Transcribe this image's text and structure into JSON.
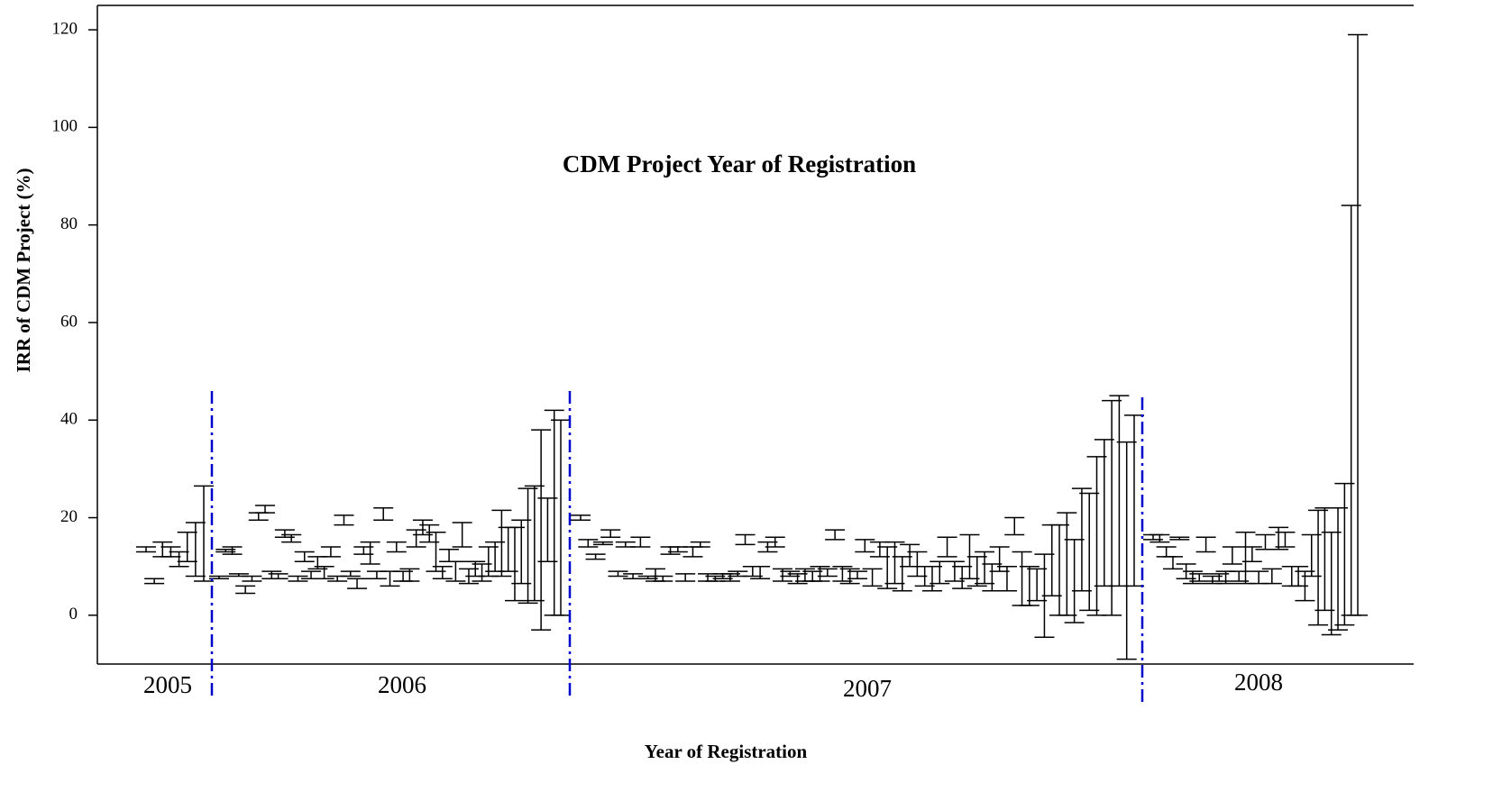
{
  "chart_data": {
    "type": "range",
    "title": "CDM Project Year of Registration",
    "x_label": "Year of Registration",
    "y_label": "IRR of CDM Project (%)",
    "ylim": [
      -10,
      125
    ],
    "yticks": [
      0,
      20,
      40,
      60,
      80,
      100,
      120
    ],
    "color": "#000000",
    "divider_color": "#0000cc",
    "groups": [
      {
        "label": "2005",
        "low": [
          13,
          6.5,
          12,
          12,
          10,
          11,
          8,
          7
        ],
        "high": [
          14,
          7.5,
          15,
          14,
          13,
          17,
          19,
          26.5
        ]
      },
      {
        "label": "2006",
        "low": [
          7.5,
          13,
          12.5,
          8,
          4.5,
          7,
          19.5,
          21,
          7.5,
          7.5,
          16,
          15,
          7,
          11,
          7.5,
          9.5,
          7.5,
          12,
          7,
          18.5,
          8,
          5.5,
          12.5,
          10.5,
          7.5,
          19.5,
          6,
          13,
          7,
          7,
          14,
          16.5,
          15,
          9,
          7.5,
          11,
          7,
          14,
          6.5,
          8,
          7,
          8,
          9,
          8,
          9,
          3,
          6.5,
          2.5,
          3,
          -3,
          11,
          0,
          0
        ],
        "high": [
          8,
          13.5,
          14,
          8.5,
          6,
          8,
          21,
          22.5,
          9,
          8.5,
          17.5,
          16.5,
          8,
          13,
          9,
          12,
          10,
          14,
          8,
          20.5,
          9,
          7.5,
          14,
          15,
          9,
          22,
          9,
          15,
          9,
          9.5,
          17.5,
          19.5,
          18.5,
          17,
          10,
          13.5,
          11,
          19,
          9.5,
          11,
          10.5,
          14,
          15,
          21.5,
          18,
          18,
          19.5,
          26,
          26.5,
          38,
          24,
          42,
          40
        ]
      },
      {
        "label": "2007",
        "low": [
          19.5,
          14,
          11.5,
          14.5,
          16,
          8,
          14,
          7.5,
          14,
          7.5,
          7,
          7,
          12.5,
          13,
          7,
          12,
          14,
          7,
          7,
          7.5,
          7,
          8,
          14.5,
          8,
          7.5,
          13,
          14,
          7,
          8,
          6.5,
          7,
          7,
          7,
          8,
          15.5,
          7,
          6.5,
          7.5,
          13,
          6,
          12,
          5.5,
          6.5,
          5,
          10,
          8,
          6,
          5,
          6.5,
          12,
          7,
          5.5,
          7.5,
          6,
          6.5,
          5,
          9,
          5,
          16.5,
          2,
          2,
          3,
          -4.5,
          4,
          0,
          0,
          -1.5,
          5,
          1,
          0,
          6,
          0,
          6,
          -9,
          6
        ],
        "high": [
          20.5,
          15.5,
          12.5,
          15,
          17.5,
          9,
          15,
          8.5,
          16,
          8,
          9.5,
          8,
          14,
          14,
          8.5,
          14,
          15,
          8.5,
          8,
          8.5,
          8.5,
          9,
          16.5,
          10,
          10,
          15,
          16,
          9.5,
          9,
          8.5,
          9.5,
          9,
          10,
          9.5,
          17.5,
          10,
          9.5,
          9,
          15.5,
          9.5,
          15,
          14,
          15,
          12,
          14.5,
          13,
          10,
          10,
          11,
          16,
          11,
          10,
          16.5,
          12,
          13,
          10.5,
          14,
          10,
          20,
          13,
          10,
          9.5,
          12.5,
          18.5,
          18.5,
          21,
          15.5,
          26,
          25,
          32.5,
          36,
          44,
          45,
          35.5,
          41
        ]
      },
      {
        "label": "2008",
        "low": [
          15.5,
          15,
          12,
          9.5,
          15.5,
          7.5,
          6.5,
          7,
          13,
          6.5,
          7,
          6.5,
          10.5,
          7,
          6.5,
          11,
          6.5,
          13.5,
          6.5,
          13.5,
          14,
          6,
          6,
          3,
          8,
          -2,
          1,
          -4,
          -3,
          -2,
          0,
          0
        ],
        "high": [
          16.5,
          16.5,
          14,
          12,
          16,
          10.5,
          9,
          8.5,
          16,
          8,
          8.5,
          9,
          14,
          9,
          17,
          14,
          9,
          16.5,
          9.5,
          18,
          17,
          10,
          10,
          9,
          16.5,
          21.5,
          22,
          17,
          22,
          27,
          84,
          119
        ]
      }
    ]
  }
}
